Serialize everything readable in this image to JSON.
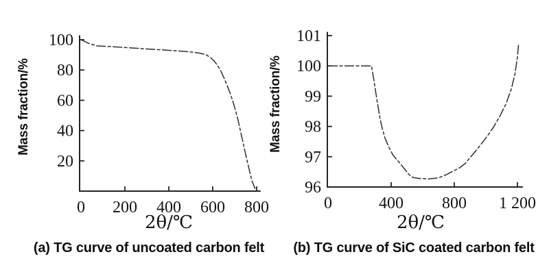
{
  "figure": {
    "background": "#ffffff",
    "ink_color": "#1e1e1e",
    "curve_color": "#2e2e2e"
  },
  "chart_data": [
    {
      "type": "line",
      "panel": "a",
      "title": "",
      "caption": "(a) TG curve of uncoated carbon felt",
      "xlabel": "2θ/℃",
      "ylabel": "Mass fraction/%",
      "xlim": [
        0,
        815
      ],
      "ylim": [
        0,
        102.5
      ],
      "grid": false,
      "legend": "none",
      "line_style": "dash-dot",
      "xticks": [
        {
          "value": 0,
          "label": "0",
          "mark": false
        },
        {
          "value": 200,
          "label": "200",
          "mark": true
        },
        {
          "value": 400,
          "label": "400",
          "mark": true
        },
        {
          "value": 600,
          "label": "600",
          "mark": true
        },
        {
          "value": 800,
          "label": "800",
          "mark": true
        }
      ],
      "yticks": [
        {
          "value": 20,
          "label": "20",
          "mark": true
        },
        {
          "value": 40,
          "label": "40",
          "mark": true
        },
        {
          "value": 60,
          "label": "60",
          "mark": true
        },
        {
          "value": 80,
          "label": "80",
          "mark": true
        },
        {
          "value": 100,
          "label": "100",
          "mark": true
        }
      ],
      "series": [
        {
          "name": "TG curve of uncoated carbon felt",
          "x": [
            0,
            35,
            75,
            130,
            210,
            300,
            390,
            460,
            515,
            545,
            570,
            590,
            605,
            620,
            635,
            650,
            665,
            680,
            695,
            712,
            736,
            758,
            778,
            793
          ],
          "y": [
            100,
            97.6,
            95.9,
            95.5,
            94.8,
            93.9,
            93.1,
            92.4,
            91.7,
            91.0,
            90.1,
            88.2,
            86.2,
            83.4,
            79.8,
            75.2,
            70.0,
            64.3,
            57.8,
            49.0,
            33.5,
            19.0,
            7.0,
            1.5
          ]
        }
      ]
    },
    {
      "type": "line",
      "panel": "b",
      "title": "",
      "caption": "(b) TG curve of SiC coated carbon felt",
      "xlabel": "2θ/℃",
      "ylabel": "Mass fraction/%",
      "xlim": [
        0,
        1230
      ],
      "ylim": [
        96,
        101.1
      ],
      "grid": false,
      "legend": "none",
      "line_style": "dash-dot",
      "xticks": [
        {
          "value": 0,
          "label": "0",
          "mark": false
        },
        {
          "value": 400,
          "label": "400",
          "mark": true
        },
        {
          "value": 800,
          "label": "800",
          "mark": true
        },
        {
          "value": 1200,
          "label": "1 200",
          "mark": true
        }
      ],
      "yticks": [
        {
          "value": 96,
          "label": "96",
          "mark": true
        },
        {
          "value": 97,
          "label": "97",
          "mark": true
        },
        {
          "value": 98,
          "label": "98",
          "mark": true
        },
        {
          "value": 99,
          "label": "99",
          "mark": true
        },
        {
          "value": 100,
          "label": "100",
          "mark": true
        },
        {
          "value": 101,
          "label": "101",
          "mark": true
        }
      ],
      "series": [
        {
          "name": "TG curve of SiC coated carbon felt",
          "x": [
            0,
            88,
            215,
            275,
            290,
            312,
            330,
            345,
            362,
            387,
            412,
            450,
            487,
            515,
            540,
            580,
            640,
            700,
            755,
            790,
            830,
            870,
            913,
            945,
            975,
            1005,
            1045,
            1090,
            1128,
            1162,
            1185,
            1200,
            1208
          ],
          "y": [
            100,
            100,
            100,
            100,
            99.55,
            98.8,
            98.25,
            97.9,
            97.6,
            97.3,
            97.05,
            96.82,
            96.58,
            96.4,
            96.31,
            96.28,
            96.27,
            96.3,
            96.42,
            96.52,
            96.62,
            96.78,
            97.05,
            97.25,
            97.45,
            97.65,
            97.95,
            98.35,
            98.75,
            99.25,
            99.75,
            100.3,
            100.75
          ]
        }
      ]
    }
  ]
}
